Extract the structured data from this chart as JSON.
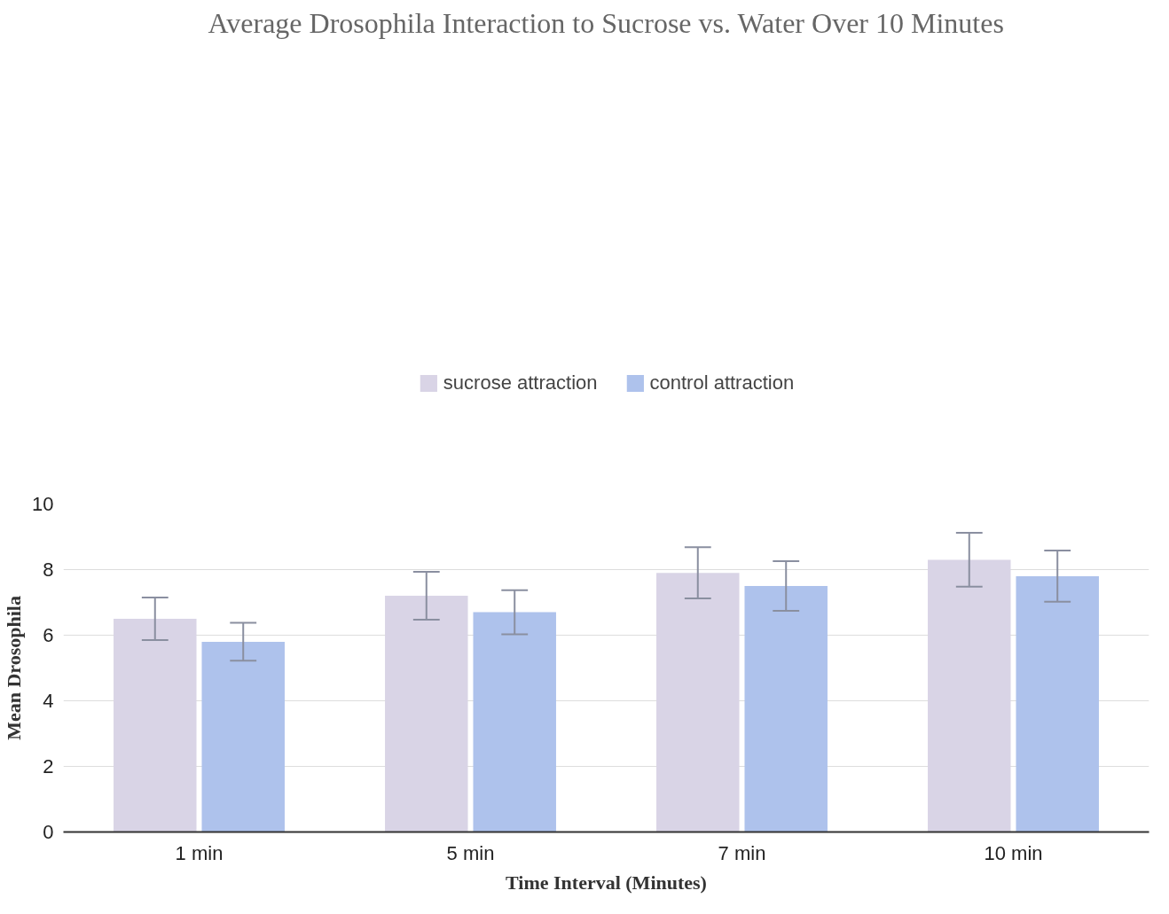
{
  "chart_data": {
    "type": "bar",
    "title": "Average Drosophila Interaction to Sucrose vs. Water Over 10 Minutes",
    "xlabel": "Time Interval (Minutes)",
    "ylabel": "Mean Drosophila",
    "categories": [
      "1 min",
      "5 min",
      "7 min",
      "10 min"
    ],
    "series": [
      {
        "name": "sucrose attraction",
        "color": "#d9d4e6",
        "values": [
          6.5,
          7.2,
          7.9,
          8.3
        ],
        "errors": [
          0.65,
          0.73,
          0.78,
          0.82
        ]
      },
      {
        "name": "control attraction",
        "color": "#aec2ec",
        "values": [
          5.8,
          6.7,
          7.5,
          7.8
        ],
        "errors": [
          0.58,
          0.67,
          0.76,
          0.78
        ]
      }
    ],
    "ylim": [
      0,
      10
    ],
    "yticks": [
      0,
      2,
      4,
      6,
      8,
      10
    ],
    "grid": "y",
    "legend": "top"
  }
}
